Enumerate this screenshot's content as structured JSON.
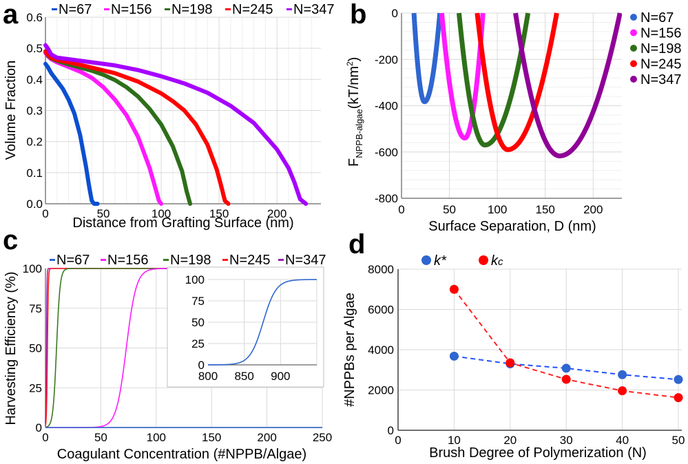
{
  "panels": {
    "a": {
      "letter": "a"
    },
    "b": {
      "letter": "b"
    },
    "c": {
      "letter": "c"
    },
    "d": {
      "letter": "d"
    }
  },
  "chart_data": [
    {
      "id": "a",
      "type": "line",
      "title": "",
      "xlabel": "Distance from Grafting Surface (nm)",
      "ylabel": "Volume Fraction",
      "xlim": [
        0,
        238
      ],
      "ylim": [
        0,
        0.6
      ],
      "xticks": [
        "0",
        "50",
        "100",
        "150",
        "200"
      ],
      "yticks": [
        "0.0",
        "0.1",
        "0.2",
        "0.3",
        "0.4",
        "0.5",
        "0.6"
      ],
      "grid": true,
      "legend_position": "top",
      "series": [
        {
          "name": "N=67",
          "color": "#0b4fd1",
          "x": [
            0,
            2,
            5,
            10,
            15,
            20,
            25,
            30,
            35,
            38,
            40,
            42,
            45
          ],
          "y": [
            0.45,
            0.44,
            0.42,
            0.395,
            0.37,
            0.335,
            0.29,
            0.22,
            0.12,
            0.05,
            0.01,
            0.0,
            0.0
          ]
        },
        {
          "name": "N=156",
          "color": "#ff19ff",
          "x": [
            0,
            2,
            5,
            10,
            20,
            30,
            40,
            50,
            60,
            70,
            80,
            90,
            95,
            98,
            100
          ],
          "y": [
            0.485,
            0.475,
            0.465,
            0.455,
            0.44,
            0.425,
            0.405,
            0.375,
            0.335,
            0.285,
            0.215,
            0.115,
            0.05,
            0.01,
            0.0
          ]
        },
        {
          "name": "N=198",
          "color": "#2e6e1a",
          "x": [
            0,
            2,
            5,
            10,
            20,
            30,
            40,
            50,
            60,
            70,
            80,
            90,
            100,
            110,
            118,
            122,
            125
          ],
          "y": [
            0.49,
            0.478,
            0.468,
            0.46,
            0.448,
            0.438,
            0.428,
            0.415,
            0.398,
            0.375,
            0.345,
            0.305,
            0.255,
            0.185,
            0.105,
            0.04,
            0.0
          ]
        },
        {
          "name": "N=245",
          "color": "#ff0000",
          "x": [
            0,
            2,
            5,
            10,
            20,
            40,
            60,
            80,
            100,
            110,
            120,
            130,
            140,
            148,
            152,
            155,
            158
          ],
          "y": [
            0.49,
            0.48,
            0.47,
            0.463,
            0.455,
            0.438,
            0.42,
            0.393,
            0.355,
            0.33,
            0.3,
            0.255,
            0.19,
            0.11,
            0.055,
            0.01,
            0.0
          ]
        },
        {
          "name": "N=347",
          "color": "#a600ff",
          "x": [
            0,
            2,
            5,
            10,
            20,
            40,
            60,
            80,
            100,
            120,
            140,
            160,
            180,
            200,
            210,
            215,
            220,
            225
          ],
          "y": [
            0.51,
            0.5,
            0.48,
            0.47,
            0.465,
            0.455,
            0.445,
            0.43,
            0.41,
            0.387,
            0.357,
            0.315,
            0.26,
            0.175,
            0.115,
            0.07,
            0.015,
            0.0
          ]
        }
      ]
    },
    {
      "id": "b",
      "type": "line",
      "title": "",
      "xlabel": "Surface Separation, D (nm)",
      "ylabel": "F_NPPB-algae (kT/nm²)",
      "ylabel_main": "F",
      "ylabel_sub": "NPPB-algae",
      "ylabel_unit": "(kT/nm",
      "ylabel_sup": "2",
      "ylabel_close": ")",
      "xlim": [
        0,
        230
      ],
      "ylim": [
        -800,
        0
      ],
      "xticks": [
        "0",
        "50",
        "100",
        "150",
        "200"
      ],
      "yticks": [
        "-800",
        "-600",
        "-400",
        "-200",
        "0"
      ],
      "grid": true,
      "legend_position": "right",
      "series": [
        {
          "name": "N=67",
          "color": "#2f66d0",
          "min_x": 24,
          "min_y": -383,
          "x0": 13,
          "x1": 40
        },
        {
          "name": "N=156",
          "color": "#ff1aff",
          "min_x": 66,
          "min_y": -540,
          "x0": 42,
          "x1": 85
        },
        {
          "name": "N=198",
          "color": "#2e7019",
          "min_x": 87,
          "min_y": -570,
          "x0": 60,
          "x1": 132
        },
        {
          "name": "N=245",
          "color": "#ff0000",
          "min_x": 111,
          "min_y": -590,
          "x0": 79,
          "x1": 162
        },
        {
          "name": "N=347",
          "color": "#8f0097",
          "min_x": 165,
          "min_y": -617,
          "x0": 119,
          "x1": 228
        }
      ]
    },
    {
      "id": "c",
      "type": "line",
      "title": "",
      "xlabel": "Coagulant Concentration (#NPPB/Algae)",
      "ylabel": "Harvesting Efficiency (%)",
      "xlim": [
        0,
        250
      ],
      "ylim": [
        0,
        100
      ],
      "xticks": [
        "0",
        "50",
        "100",
        "150",
        "200",
        "250"
      ],
      "yticks": [
        "0",
        "25",
        "50",
        "75",
        "100"
      ],
      "grid": true,
      "legend_position": "top",
      "series": [
        {
          "name": "N=67",
          "color": "#2f66d0",
          "midpoint": 876,
          "width": 9
        },
        {
          "name": "N=156",
          "color": "#ff1aff",
          "midpoint": 73,
          "width": 4.5
        },
        {
          "name": "N=198",
          "color": "#3b7a1f",
          "midpoint": 10,
          "width": 1.6
        },
        {
          "name": "N=245",
          "color": "#ff1a1a",
          "midpoint": 1.8,
          "width": 0.4
        },
        {
          "name": "N=347",
          "color": "#9a1fb5",
          "midpoint": 0.9,
          "width": 0.25
        }
      ],
      "inset": {
        "type": "line",
        "series_name": "N=67",
        "color": "#2f66d0",
        "xlim": [
          800,
          950
        ],
        "ylim": [
          0,
          100
        ],
        "xticks": [
          "800",
          "850",
          "900"
        ],
        "yticks": [
          "0",
          "25",
          "50",
          "75",
          "100"
        ],
        "midpoint": 876,
        "width": 9
      }
    },
    {
      "id": "d",
      "type": "line",
      "title": "",
      "xlabel": "Brush Degree of Polymerization (N)",
      "ylabel": "#NPPBs per Algae",
      "xlim": [
        0,
        50
      ],
      "ylim": [
        0,
        8000
      ],
      "xticks": [
        "0",
        "10",
        "20",
        "30",
        "40",
        "50"
      ],
      "yticks": [
        "0",
        "2000",
        "4000",
        "6000",
        "8000"
      ],
      "grid": true,
      "legend_position": "top-left",
      "categories": [
        10,
        20,
        30,
        40,
        50
      ],
      "series": [
        {
          "name": "k*",
          "legend_base": "k",
          "legend_suffix": "*",
          "marker_color": "#2f66d0",
          "line_color": "#1f4fff",
          "values": [
            3680,
            3300,
            3080,
            2760,
            2520
          ]
        },
        {
          "name": "kc",
          "legend_base": "k",
          "legend_suffix": "c",
          "marker_color": "#ff0000",
          "line_color": "#ff2020",
          "values": [
            7000,
            3350,
            2530,
            1960,
            1620
          ]
        }
      ]
    }
  ]
}
